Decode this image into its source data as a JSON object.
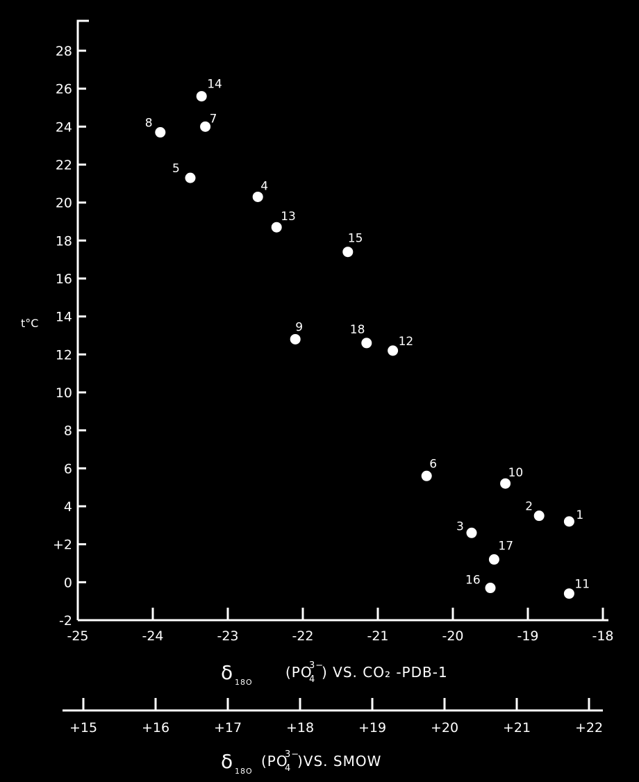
{
  "chart_data": {
    "type": "scatter",
    "ylabel": "t°C",
    "x_axis_label": {
      "main": "δ",
      "sub": "18O",
      "rest": "(PO",
      "ion_sub": "4",
      "ion_sup": "3−",
      "suffix": ") VS. CO₂ -PDB-1"
    },
    "x2_axis_label": {
      "main": "δ",
      "sub": "18O",
      "rest": "(PO",
      "ion_sub": "4",
      "ion_sup": "3−",
      "suffix": ")VS. SMOW"
    },
    "x_ticks": [
      "-25",
      "-24",
      "-23",
      "-22",
      "-21",
      "-20",
      "-19",
      "-18"
    ],
    "x2_ticks": [
      "+15",
      "+16",
      "+17",
      "+18",
      "+19",
      "+20",
      "+21",
      "+22"
    ],
    "y_ticks": [
      "-2",
      "0",
      "+2",
      "4",
      "6",
      "8",
      "10",
      "12",
      "14",
      "16",
      "18",
      "20",
      "22",
      "24",
      "26",
      "28"
    ],
    "xlim": [
      -25,
      -17.9
    ],
    "ylim": [
      -2,
      29.5
    ],
    "points": [
      {
        "label": "1",
        "x": -18.45,
        "y": 3.2
      },
      {
        "label": "2",
        "x": -18.85,
        "y": 3.5
      },
      {
        "label": "3",
        "x": -19.75,
        "y": 2.6
      },
      {
        "label": "4",
        "x": -22.6,
        "y": 20.3
      },
      {
        "label": "5",
        "x": -23.5,
        "y": 21.3
      },
      {
        "label": "6",
        "x": -20.35,
        "y": 5.6
      },
      {
        "label": "7",
        "x": -23.3,
        "y": 24.0
      },
      {
        "label": "8",
        "x": -23.9,
        "y": 23.7
      },
      {
        "label": "9",
        "x": -22.1,
        "y": 12.8
      },
      {
        "label": "10",
        "x": -19.3,
        "y": 5.2
      },
      {
        "label": "11",
        "x": -18.45,
        "y": -0.6
      },
      {
        "label": "12",
        "x": -20.8,
        "y": 12.2
      },
      {
        "label": "13",
        "x": -22.35,
        "y": 18.7
      },
      {
        "label": "14",
        "x": -23.35,
        "y": 25.6
      },
      {
        "label": "15",
        "x": -21.4,
        "y": 17.4
      },
      {
        "label": "16",
        "x": -19.5,
        "y": -0.3
      },
      {
        "label": "17",
        "x": -19.45,
        "y": 1.2
      },
      {
        "label": "18",
        "x": -21.15,
        "y": 12.6
      }
    ]
  }
}
